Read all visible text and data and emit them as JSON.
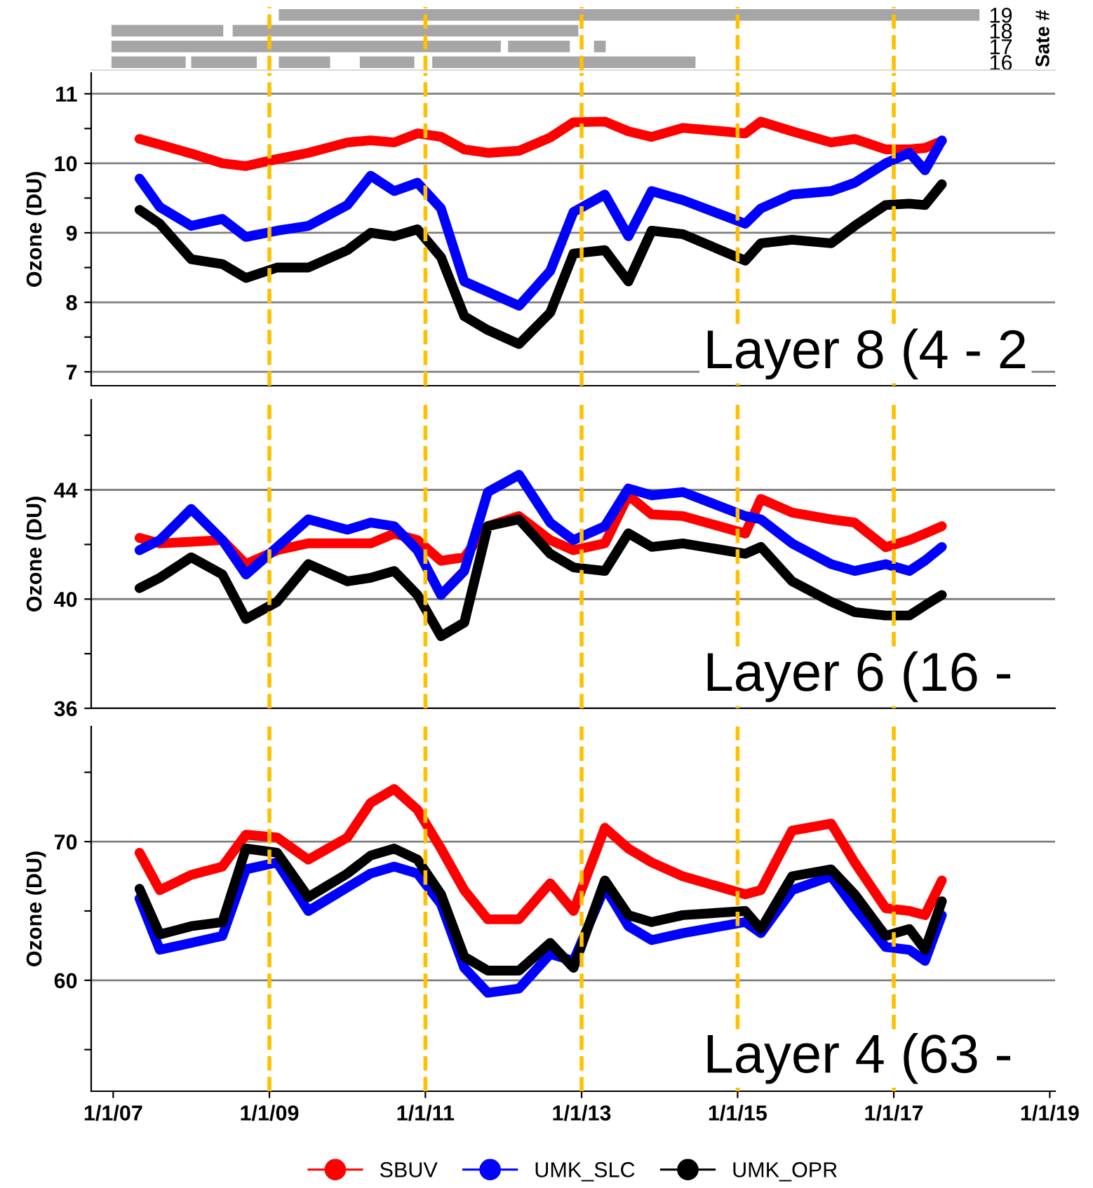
{
  "chart_data": [
    {
      "type": "line",
      "ylabel": "Sate #",
      "xlim": [
        "2006-09-20",
        "2019-01-26"
      ],
      "ylim": [
        15.5,
        19.5
      ],
      "yticks": [
        16,
        17,
        18,
        19
      ],
      "tick_labels": "y",
      "line_style": "solid",
      "series": [
        {
          "color": "#a6a6a6",
          "x": [
            "2009-02-14",
            "2018-02-06"
          ],
          "values": [
            19,
            19
          ]
        },
        {
          "color": "#a6a6a6",
          "x": [
            "2006-12-24",
            "2008-05-30",
            "2008-06-20",
            "2008-07-13",
            "2012-12-17"
          ],
          "values": [
            18,
            18,
            null,
            18,
            18
          ]
        },
        {
          "color": "#a6a6a6",
          "x": [
            "2006-12-24",
            "2011-12-20",
            "2012-01-05",
            "2012-01-23",
            "2012-11-07",
            "2012-12-01",
            "2013-02-28",
            "2013-04-24"
          ],
          "values": [
            17,
            17,
            null,
            17,
            17,
            null,
            17,
            17
          ]
        },
        {
          "color": "#a6a6a6",
          "x": [
            "2006-12-24",
            "2007-12-06",
            "2007-12-20",
            "2008-01-01",
            "2008-11-03",
            "2008-12-01",
            "2009-02-14",
            "2009-10-12",
            "2009-12-01",
            "2010-02-28",
            "2010-11-10",
            "2010-12-01",
            "2011-02-02",
            "2014-06-18"
          ],
          "values": [
            16,
            16,
            null,
            16,
            16,
            null,
            16,
            16,
            null,
            16,
            16,
            null,
            16,
            16
          ]
        }
      ],
      "ref_lines": [
        {
          "axis": "x",
          "value": "2009-01-01",
          "color": "#ffc000",
          "line_style": "dashed"
        },
        {
          "axis": "x",
          "value": "2011-01-01",
          "color": "#ffc000",
          "line_style": "dashed"
        },
        {
          "axis": "x",
          "value": "2013-01-01",
          "color": "#ffc000",
          "line_style": "dashed"
        },
        {
          "axis": "x",
          "value": "2015-01-01",
          "color": "#ffc000",
          "line_style": "dashed"
        },
        {
          "axis": "x",
          "value": "2017-01-01",
          "color": "#ffc000",
          "line_style": "dashed"
        }
      ]
    },
    {
      "type": "line",
      "ylabel": "Ozone (DU)",
      "xlim": [
        "2006-09-20",
        "2019-01-26"
      ],
      "ylim": [
        6.8,
        11.3
      ],
      "yticks": [
        7,
        {
          "value": 7.5,
          "label": null
        },
        8,
        {
          "value": 8.5,
          "label": null
        },
        9,
        {
          "value": 9.5,
          "label": null
        },
        10,
        {
          "value": 10.5,
          "label": null
        },
        11
      ],
      "tick_labels": "y",
      "grid": "y",
      "line_style": "solid",
      "annotations": [
        "Layer 8 (4 - 2"
      ],
      "x": [
        "2007-05-04",
        "2007-08-07",
        "2008-01-01",
        "2008-05-26",
        "2008-09-13",
        "2009-02-06",
        "2009-07-02",
        "2010-01-01",
        "2010-04-20",
        "2010-08-08",
        "2010-11-25",
        "2011-03-15",
        "2011-07-02",
        "2011-10-20",
        "2012-03-14",
        "2012-08-07",
        "2012-11-24",
        "2013-04-20",
        "2013-08-08",
        "2013-11-25",
        "2014-04-20",
        "2015-02-06",
        "2015-04-20",
        "2015-09-13",
        "2016-03-14",
        "2016-07-02",
        "2016-11-24",
        "2017-03-15",
        "2017-05-27",
        "2017-08-14"
      ],
      "series": [
        {
          "color": "#ff0000",
          "values": [
            10.35,
            10.27,
            10.14,
            10.0,
            9.96,
            10.06,
            10.15,
            10.3,
            10.33,
            10.3,
            10.43,
            10.38,
            10.2,
            10.15,
            10.18,
            10.37,
            10.59,
            10.6,
            10.46,
            10.38,
            10.51,
            10.43,
            10.6,
            10.46,
            10.3,
            10.35,
            10.2,
            10.2,
            10.22,
            10.32
          ]
        },
        {
          "color": "#0000ff",
          "values": [
            9.78,
            9.37,
            9.1,
            9.2,
            8.94,
            9.03,
            9.1,
            9.4,
            9.82,
            9.6,
            9.72,
            9.35,
            8.3,
            8.15,
            7.95,
            8.45,
            9.3,
            9.55,
            8.95,
            9.6,
            9.47,
            9.13,
            9.35,
            9.55,
            9.6,
            9.72,
            10.0,
            10.15,
            9.9,
            10.33
          ]
        },
        {
          "color": "#000000",
          "values": [
            9.33,
            9.13,
            8.62,
            8.55,
            8.35,
            8.5,
            8.5,
            8.75,
            9.0,
            8.95,
            9.05,
            8.65,
            7.8,
            7.6,
            7.4,
            7.85,
            8.7,
            8.75,
            8.3,
            9.03,
            8.98,
            8.6,
            8.85,
            8.9,
            8.85,
            9.1,
            9.4,
            9.42,
            9.4,
            9.7
          ]
        }
      ],
      "ref_lines": [
        {
          "axis": "x",
          "value": "2009-01-01",
          "color": "#ffc000",
          "line_style": "dashed"
        },
        {
          "axis": "x",
          "value": "2011-01-01",
          "color": "#ffc000",
          "line_style": "dashed"
        },
        {
          "axis": "x",
          "value": "2013-01-01",
          "color": "#ffc000",
          "line_style": "dashed"
        },
        {
          "axis": "x",
          "value": "2015-01-01",
          "color": "#ffc000",
          "line_style": "dashed"
        },
        {
          "axis": "x",
          "value": "2017-01-01",
          "color": "#ffc000",
          "line_style": "dashed"
        }
      ]
    },
    {
      "type": "line",
      "ylabel": "Ozone (DU)",
      "xlim": [
        "2006-09-20",
        "2019-01-26"
      ],
      "ylim": [
        36,
        47.3
      ],
      "yticks": [
        36,
        {
          "value": 38,
          "label": null
        },
        40,
        {
          "value": 42,
          "label": null
        },
        44,
        {
          "value": 46,
          "label": null
        }
      ],
      "tick_labels": "y",
      "grid": "y",
      "line_style": "solid",
      "annotations": [
        "Layer 6 (16 -"
      ],
      "x": [
        "2007-05-04",
        "2007-08-07",
        "2008-01-01",
        "2008-05-26",
        "2008-09-13",
        "2009-02-06",
        "2009-07-02",
        "2010-01-01",
        "2010-04-20",
        "2010-08-08",
        "2010-11-25",
        "2011-03-15",
        "2011-07-02",
        "2011-10-20",
        "2012-03-14",
        "2012-08-07",
        "2012-11-24",
        "2013-04-20",
        "2013-08-08",
        "2013-11-25",
        "2014-04-20",
        "2015-02-06",
        "2015-04-20",
        "2015-09-13",
        "2016-03-14",
        "2016-07-02",
        "2016-11-24",
        "2017-03-15",
        "2017-05-27",
        "2017-08-14"
      ],
      "series": [
        {
          "color": "#ff0000",
          "values": [
            42.24,
            42.04,
            42.1,
            42.16,
            41.28,
            41.79,
            42.04,
            42.04,
            42.04,
            42.4,
            42.16,
            41.4,
            41.53,
            42.67,
            43.04,
            42.16,
            41.79,
            42.04,
            43.8,
            43.1,
            43.04,
            42.4,
            43.67,
            43.17,
            42.92,
            42.8,
            41.9,
            42.16,
            42.4,
            42.67
          ]
        },
        {
          "color": "#0000ff",
          "values": [
            41.79,
            42.16,
            43.3,
            42.16,
            40.9,
            41.9,
            42.92,
            42.54,
            42.8,
            42.67,
            41.79,
            40.15,
            41.03,
            43.92,
            44.55,
            42.8,
            42.16,
            42.67,
            44.05,
            43.8,
            43.92,
            43.04,
            42.92,
            42.04,
            41.28,
            41.03,
            41.28,
            41.03,
            41.41,
            41.91
          ]
        },
        {
          "color": "#000000",
          "values": [
            40.4,
            40.78,
            41.53,
            40.9,
            39.27,
            39.9,
            41.28,
            40.65,
            40.78,
            41.03,
            40.15,
            38.64,
            39.14,
            42.67,
            42.92,
            41.66,
            41.16,
            41.03,
            42.41,
            41.91,
            42.04,
            41.66,
            41.91,
            40.65,
            39.9,
            39.52,
            39.4,
            39.4,
            39.77,
            40.15
          ]
        }
      ],
      "ref_lines": [
        {
          "axis": "x",
          "value": "2009-01-01",
          "color": "#ffc000",
          "line_style": "dashed"
        },
        {
          "axis": "x",
          "value": "2011-01-01",
          "color": "#ffc000",
          "line_style": "dashed"
        },
        {
          "axis": "x",
          "value": "2013-01-01",
          "color": "#ffc000",
          "line_style": "dashed"
        },
        {
          "axis": "x",
          "value": "2015-01-01",
          "color": "#ffc000",
          "line_style": "dashed"
        },
        {
          "axis": "x",
          "value": "2017-01-01",
          "color": "#ffc000",
          "line_style": "dashed"
        }
      ]
    },
    {
      "type": "line",
      "ylabel": "Ozone (DU)",
      "xlim": [
        "2006-09-20",
        "2019-01-26"
      ],
      "ylim": [
        52,
        78.3
      ],
      "yticks": [
        {
          "value": 55,
          "label": null
        },
        60,
        {
          "value": 65,
          "label": null
        },
        70,
        {
          "value": 75,
          "label": null
        }
      ],
      "xticks": [
        {
          "value": "2007-01-01",
          "label": "1/1/07"
        },
        {
          "value": "2009-01-01",
          "label": "1/1/09"
        },
        {
          "value": "2011-01-01",
          "label": "1/1/11"
        },
        {
          "value": "2013-01-01",
          "label": "1/1/13"
        },
        {
          "value": "2015-01-01",
          "label": "1/1/15"
        },
        {
          "value": "2017-01-01",
          "label": "1/1/17"
        },
        {
          "value": "2019-01-01",
          "label": "1/1/19"
        }
      ],
      "grid": "y",
      "legend": "bottom",
      "line_style": "solid",
      "annotations": [
        "Layer 4 (63 -"
      ],
      "x": [
        "2007-05-04",
        "2007-08-07",
        "2008-01-01",
        "2008-05-26",
        "2008-09-13",
        "2009-02-06",
        "2009-07-02",
        "2010-01-01",
        "2010-04-20",
        "2010-08-08",
        "2010-11-25",
        "2011-03-15",
        "2011-07-02",
        "2011-10-20",
        "2012-03-14",
        "2012-08-07",
        "2012-11-24",
        "2013-04-20",
        "2013-08-08",
        "2013-11-25",
        "2014-04-20",
        "2015-02-06",
        "2015-04-20",
        "2015-09-13",
        "2016-03-14",
        "2016-07-02",
        "2016-11-24",
        "2017-03-15",
        "2017-05-27",
        "2017-08-14"
      ],
      "series": [
        {
          "name": "SBUV",
          "color": "#ff0000",
          "values": [
            69.2,
            66.5,
            67.6,
            68.2,
            70.5,
            70.3,
            68.7,
            70.3,
            72.8,
            73.8,
            72.3,
            69.5,
            66.5,
            64.4,
            64.4,
            67.0,
            65.0,
            71.0,
            69.5,
            68.5,
            67.5,
            66.2,
            66.5,
            70.8,
            71.3,
            68.5,
            65.2,
            65.0,
            64.7,
            67.2
          ]
        },
        {
          "name": "UMK_SLC",
          "color": "#0000ff",
          "values": [
            65.9,
            62.2,
            62.7,
            63.2,
            68.0,
            68.5,
            65.0,
            66.7,
            67.7,
            68.2,
            67.7,
            65.5,
            60.9,
            59.1,
            59.4,
            61.9,
            61.4,
            66.7,
            63.9,
            62.9,
            63.4,
            64.2,
            63.4,
            66.5,
            67.5,
            65.2,
            62.4,
            62.2,
            61.4,
            64.7
          ]
        },
        {
          "name": "UMK_OPR",
          "color": "#000000",
          "values": [
            66.6,
            63.3,
            63.9,
            64.2,
            69.5,
            69.2,
            66.0,
            67.7,
            69.0,
            69.5,
            68.7,
            66.2,
            61.7,
            60.7,
            60.7,
            62.7,
            60.9,
            67.2,
            64.7,
            64.2,
            64.7,
            65.0,
            63.7,
            67.5,
            68.0,
            66.2,
            63.2,
            63.7,
            62.2,
            65.7
          ]
        }
      ],
      "ref_lines": [
        {
          "axis": "x",
          "value": "2009-01-01",
          "color": "#ffc000",
          "line_style": "dashed"
        },
        {
          "axis": "x",
          "value": "2011-01-01",
          "color": "#ffc000",
          "line_style": "dashed"
        },
        {
          "axis": "x",
          "value": "2013-01-01",
          "color": "#ffc000",
          "line_style": "dashed"
        },
        {
          "axis": "x",
          "value": "2015-01-01",
          "color": "#ffc000",
          "line_style": "dashed"
        },
        {
          "axis": "x",
          "value": "2017-01-01",
          "color": "#ffc000",
          "line_style": "dashed"
        }
      ]
    }
  ]
}
